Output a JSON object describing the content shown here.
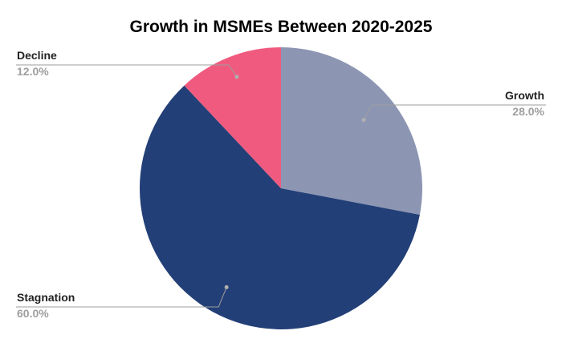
{
  "chart_data": {
    "type": "pie",
    "title": "Growth in MSMEs Between 2020-2025",
    "slices": [
      {
        "label": "Growth",
        "value": 28.0,
        "display": "28.0%",
        "color": "#8c96b3"
      },
      {
        "label": "Stagnation",
        "value": 60.0,
        "display": "60.0%",
        "color": "#233f77"
      },
      {
        "label": "Decline",
        "value": 12.0,
        "display": "12.0%",
        "color": "#f05a7e"
      }
    ],
    "start_angle_deg": 0,
    "direction": "clockwise",
    "legend": "none",
    "label_style": "external-callout"
  }
}
